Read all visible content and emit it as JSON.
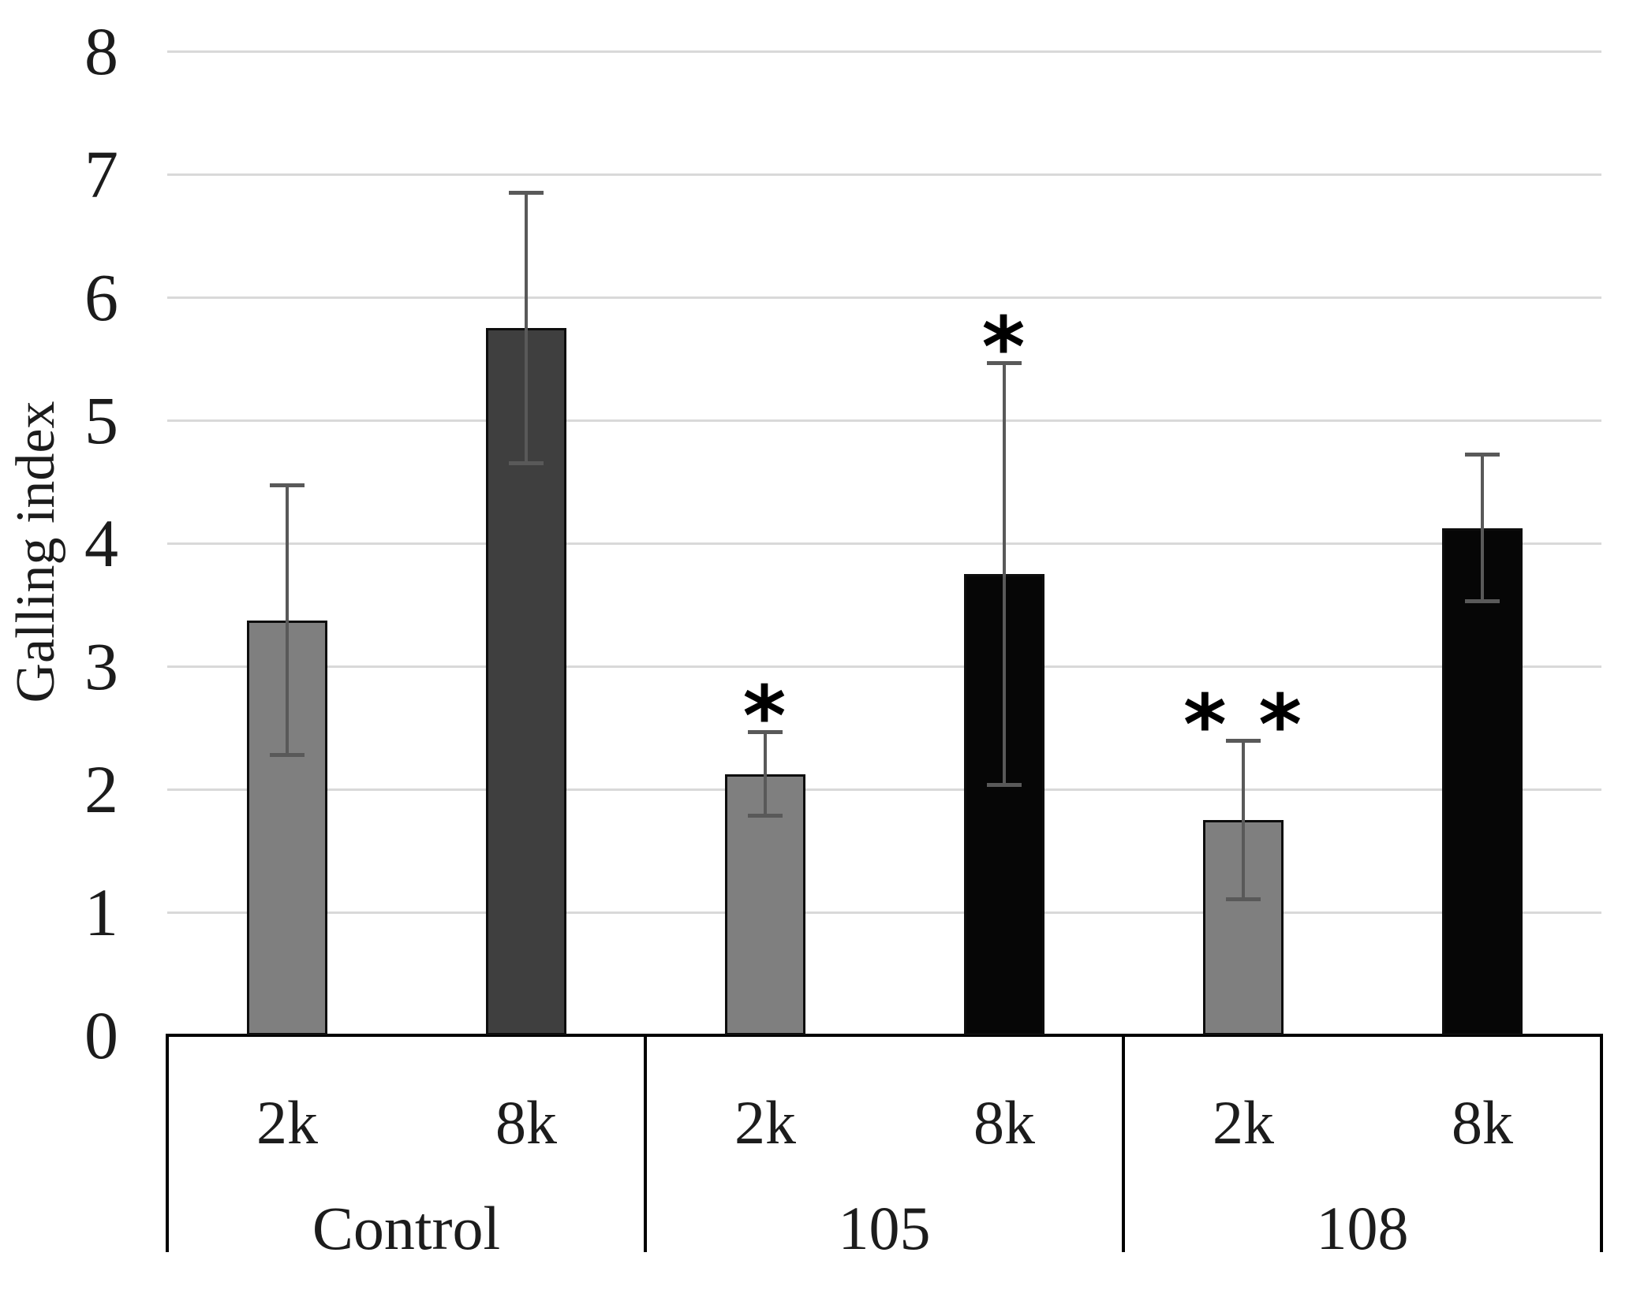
{
  "page": {
    "background": "#ffffff"
  },
  "chart_data": {
    "type": "bar",
    "title": "",
    "ylabel": "Galling index",
    "xlabel": "",
    "ylim": [
      0,
      8
    ],
    "yticks": [
      0,
      1,
      2,
      3,
      4,
      5,
      6,
      7,
      8
    ],
    "grid": true,
    "legend": "none",
    "groups": [
      "Control",
      "105",
      "108"
    ],
    "conditions": [
      "2k",
      "8k"
    ],
    "series": [
      {
        "name": "2k",
        "values": [
          3.375,
          2.125,
          1.75
        ],
        "errors": [
          1.1,
          0.34,
          0.65
        ]
      },
      {
        "name": "8k",
        "values": [
          5.75,
          3.75,
          4.125
        ],
        "errors": [
          1.1,
          1.72,
          0.6
        ]
      }
    ],
    "bars": [
      {
        "group": "Control",
        "condition": "2k",
        "value": 3.375,
        "error": 1.1,
        "significance": "",
        "fill": "#7f7f7f"
      },
      {
        "group": "Control",
        "condition": "8k",
        "value": 5.75,
        "error": 1.1,
        "significance": "",
        "fill": "#3f3f3f"
      },
      {
        "group": "105",
        "condition": "2k",
        "value": 2.125,
        "error": 0.34,
        "significance": "*",
        "fill": "#7f7f7f"
      },
      {
        "group": "105",
        "condition": "8k",
        "value": 3.75,
        "error": 1.72,
        "significance": "*",
        "fill": "#060606"
      },
      {
        "group": "108",
        "condition": "2k",
        "value": 1.75,
        "error": 0.65,
        "significance": "* *",
        "fill": "#7f7f7f"
      },
      {
        "group": "108",
        "condition": "8k",
        "value": 4.125,
        "error": 0.6,
        "significance": "",
        "fill": "#060606"
      }
    ],
    "colors": {
      "gridline": "#d9d9d9",
      "axis_line": "#000000",
      "error_bar": "#595959",
      "bar_border": "#0d0d0d",
      "text": "#1c1c1c",
      "bar_gray": "#7f7f7f",
      "bar_dark_gray": "#3f3f3f",
      "bar_black": "#060606"
    }
  }
}
